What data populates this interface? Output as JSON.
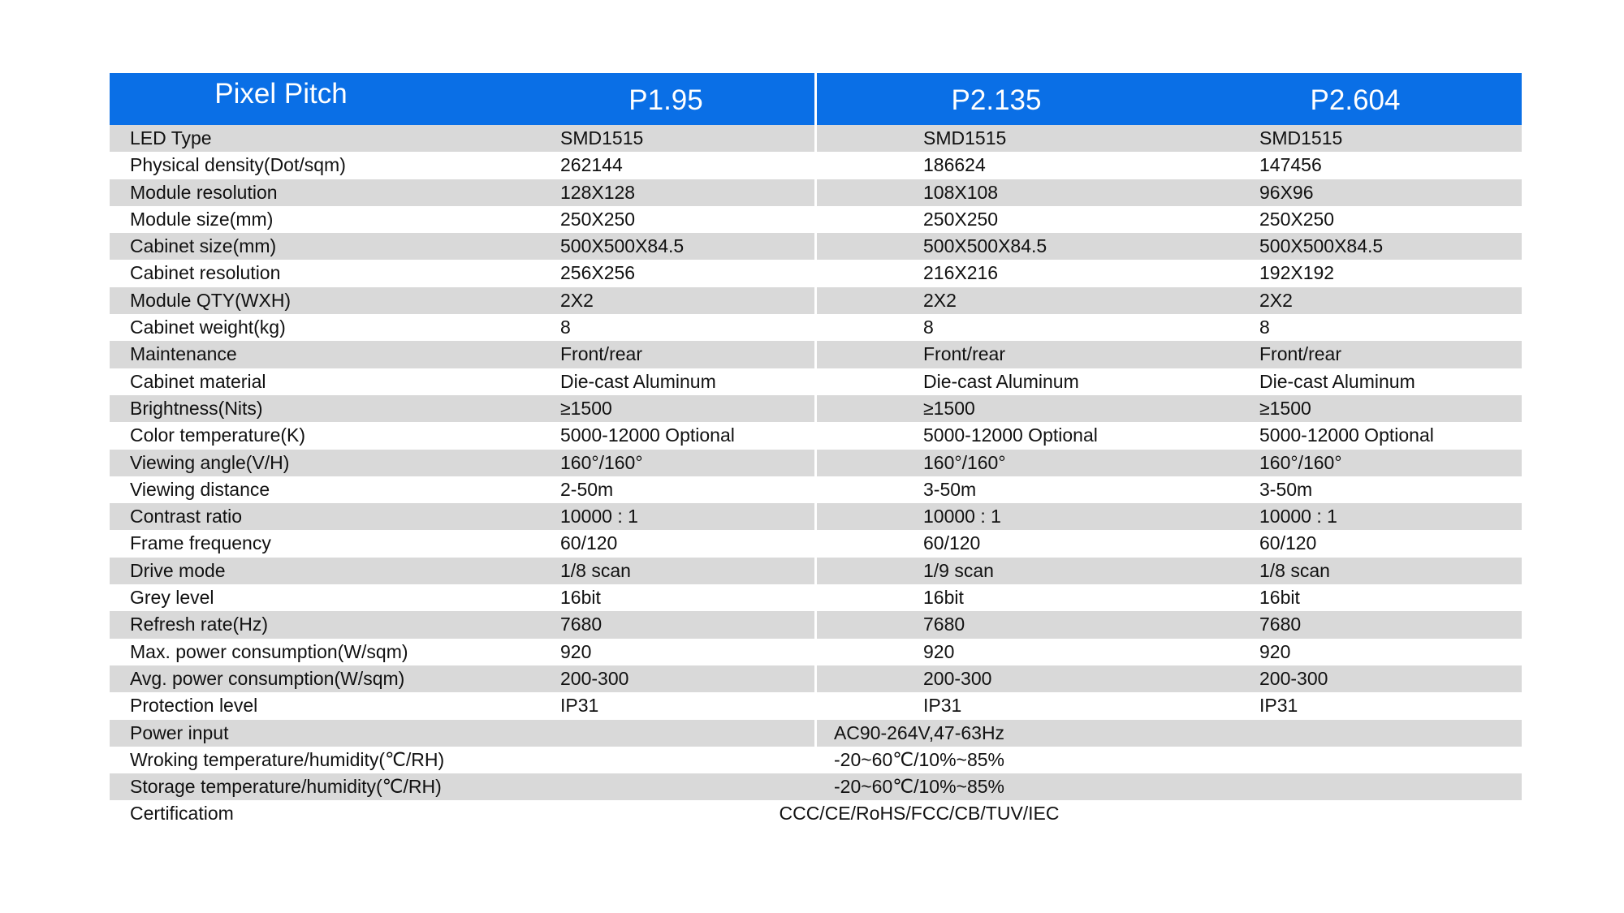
{
  "header": [
    "Pixel Pitch",
    "P1.95",
    "P2.135",
    "P2.604"
  ],
  "rows": [
    {
      "label": "LED Type",
      "values": [
        "SMD1515",
        "SMD1515",
        "SMD1515"
      ]
    },
    {
      "label": "Physical density(Dot/sqm)",
      "values": [
        "262144",
        "186624",
        "147456"
      ]
    },
    {
      "label": "Module resolution",
      "values": [
        "128X128",
        "108X108",
        "96X96"
      ]
    },
    {
      "label": "Module size(mm)",
      "values": [
        "250X250",
        "250X250",
        "250X250"
      ]
    },
    {
      "label": "Cabinet size(mm)",
      "values": [
        "500X500X84.5",
        "500X500X84.5",
        "500X500X84.5"
      ]
    },
    {
      "label": "Cabinet resolution",
      "values": [
        "256X256",
        "216X216",
        "192X192"
      ]
    },
    {
      "label": "Module QTY(WXH)",
      "values": [
        "2X2",
        "2X2",
        "2X2"
      ]
    },
    {
      "label": "Cabinet weight(kg)",
      "values": [
        "8",
        "8",
        "8"
      ]
    },
    {
      "label": "Maintenance",
      "values": [
        "Front/rear",
        "Front/rear",
        "Front/rear"
      ]
    },
    {
      "label": "Cabinet material",
      "values": [
        "Die-cast Aluminum",
        "Die-cast Aluminum",
        "Die-cast Aluminum"
      ]
    },
    {
      "label": "Brightness(Nits)",
      "values": [
        "≥1500",
        "≥1500",
        "≥1500"
      ]
    },
    {
      "label": "Color temperature(K)",
      "values": [
        "5000-12000 Optional",
        "5000-12000 Optional",
        "5000-12000 Optional"
      ]
    },
    {
      "label": "Viewing angle(V/H)",
      "values": [
        "160°/160°",
        "160°/160°",
        "160°/160°"
      ]
    },
    {
      "label": "Viewing distance",
      "values": [
        "2-50m",
        "3-50m",
        "3-50m"
      ]
    },
    {
      "label": "Contrast ratio",
      "values": [
        "10000 : 1",
        "10000 : 1",
        "10000 : 1"
      ]
    },
    {
      "label": "Frame frequency",
      "values": [
        "60/120",
        "60/120",
        "60/120"
      ]
    },
    {
      "label": "Drive mode",
      "values": [
        "1/8 scan",
        "1/9 scan",
        "1/8 scan"
      ]
    },
    {
      "label": "Grey level",
      "values": [
        "16bit",
        "16bit",
        "16bit"
      ]
    },
    {
      "label": "Refresh rate(Hz)",
      "values": [
        "7680",
        "7680",
        "7680"
      ]
    },
    {
      "label": "Max. power consumption(W/sqm)",
      "values": [
        "920",
        "920",
        "920"
      ]
    },
    {
      "label": "Avg. power consumption(W/sqm)",
      "values": [
        "200-300",
        "200-300",
        "200-300"
      ]
    },
    {
      "label": "Protection level",
      "values": [
        "IP31",
        "IP31",
        "IP31"
      ]
    },
    {
      "label": "Power input",
      "merged": "AC90-264V,47-63Hz"
    },
    {
      "label": "Wroking temperature/humidity(℃/RH)",
      "merged": "-20~60℃/10%~85%"
    },
    {
      "label": "Storage  temperature/humidity(℃/RH)",
      "merged": "-20~60℃/10%~85%"
    },
    {
      "label": "Certificatiom",
      "merged": "CCC/CE/RoHS/FCC/CB/TUV/IEC"
    }
  ],
  "colors": {
    "header_bg": "#0a6fe6",
    "stripe": "#d9d9d9"
  }
}
